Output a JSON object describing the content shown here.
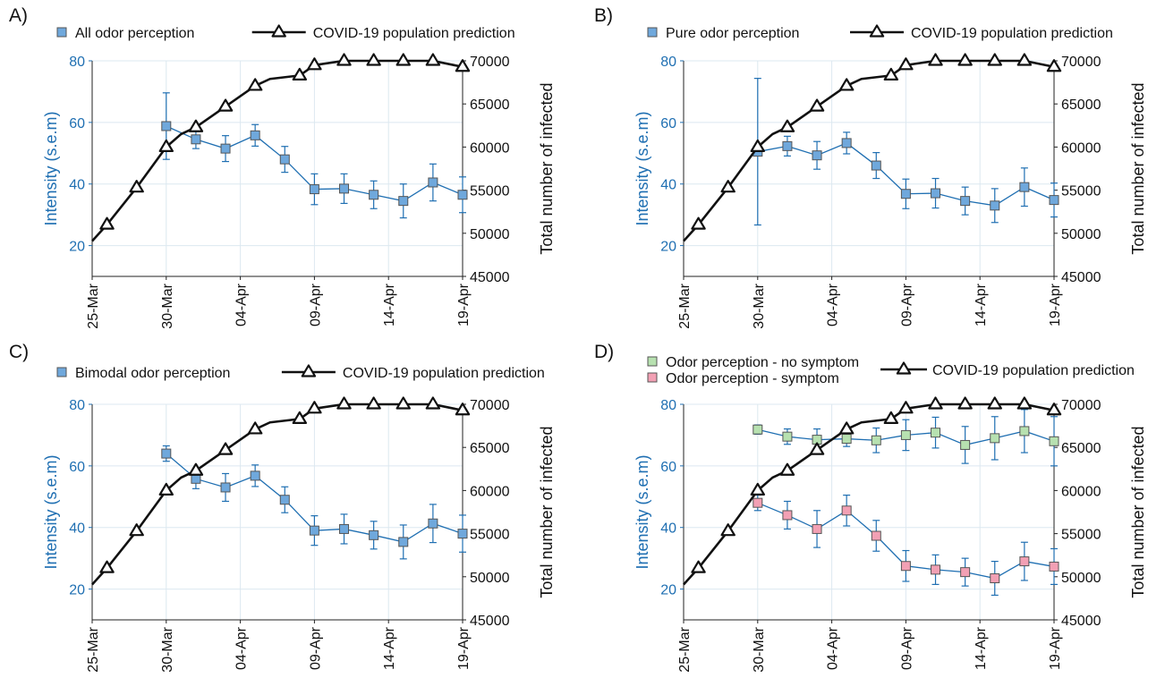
{
  "colors": {
    "blue": "#1f6fb2",
    "marker_blue": "#6fa8dc",
    "marker_green": "#b7e1b0",
    "marker_pink": "#f2a0b4",
    "marker_edge": "#555555",
    "covid_line": "#111111",
    "grid": "#dce8f0"
  },
  "dates": [
    "25-Mar",
    "30-Mar",
    "04-Apr",
    "09-Apr",
    "14-Apr",
    "19-Apr"
  ],
  "covid_dates": [
    "25-Mar",
    "26-Mar",
    "28-Mar",
    "30-Mar",
    "31-Mar",
    "01-Apr",
    "03-Apr",
    "05-Apr",
    "06-Apr",
    "08-Apr",
    "09-Apr",
    "11-Apr",
    "13-Apr",
    "15-Apr",
    "17-Apr",
    "19-Apr"
  ],
  "covid_values": [
    49100,
    51000,
    55300,
    60000,
    61500,
    62300,
    64700,
    67100,
    67900,
    68300,
    69500,
    70000,
    70000,
    70000,
    70000,
    69300
  ],
  "covid_markers": [
    false,
    true,
    true,
    true,
    false,
    true,
    true,
    true,
    false,
    true,
    true,
    true,
    true,
    true,
    true,
    true
  ],
  "chart_data": [
    {
      "panel_label": "A)",
      "type": "line",
      "xlim": [
        "25-Mar",
        "19-Apr"
      ],
      "x_ticks": [
        "25-Mar",
        "30-Mar",
        "04-Apr",
        "09-Apr",
        "14-Apr",
        "19-Apr"
      ],
      "ylabel_left": "Intensity (s.e.m)",
      "ylim_left": [
        10,
        80
      ],
      "yticks_left": [
        20,
        40,
        60,
        80
      ],
      "ylabel_right": "Total number of infected",
      "ylim_right": [
        45000,
        70000
      ],
      "yticks_right": [
        45000,
        50000,
        55000,
        60000,
        65000,
        70000
      ],
      "grid": true,
      "legend_position": "top",
      "series": [
        {
          "name": "All odor perception",
          "axis": "left",
          "marker_color_key": "marker_blue",
          "x": [
            "30-Mar",
            "01-Apr",
            "03-Apr",
            "05-Apr",
            "07-Apr",
            "09-Apr",
            "11-Apr",
            "13-Apr",
            "15-Apr",
            "17-Apr",
            "19-Apr"
          ],
          "y": [
            58.8,
            54.5,
            51.5,
            55.8,
            48.0,
            38.3,
            38.5,
            36.5,
            34.5,
            40.5,
            36.5
          ],
          "err": [
            10.8,
            3.0,
            4.2,
            3.5,
            4.2,
            5.0,
            4.8,
            4.5,
            5.5,
            6.0,
            5.8
          ]
        },
        {
          "name": "COVID-19 population prediction",
          "axis": "right"
        }
      ]
    },
    {
      "panel_label": "B)",
      "type": "line",
      "xlim": [
        "25-Mar",
        "19-Apr"
      ],
      "x_ticks": [
        "25-Mar",
        "30-Mar",
        "04-Apr",
        "09-Apr",
        "14-Apr",
        "19-Apr"
      ],
      "ylabel_left": "Intensity (s.e.m)",
      "ylim_left": [
        10,
        80
      ],
      "yticks_left": [
        20,
        40,
        60,
        80
      ],
      "ylabel_right": "Total number of infected",
      "ylim_right": [
        45000,
        70000
      ],
      "yticks_right": [
        45000,
        50000,
        55000,
        60000,
        65000,
        70000
      ],
      "grid": true,
      "legend_position": "top",
      "series": [
        {
          "name": "Pure odor perception",
          "axis": "left",
          "marker_color_key": "marker_blue",
          "x": [
            "30-Mar",
            "01-Apr",
            "03-Apr",
            "05-Apr",
            "07-Apr",
            "09-Apr",
            "11-Apr",
            "13-Apr",
            "15-Apr",
            "17-Apr",
            "19-Apr"
          ],
          "y": [
            50.5,
            52.3,
            49.3,
            53.3,
            46.0,
            36.8,
            37.0,
            34.5,
            33.0,
            39.0,
            34.8
          ],
          "err": [
            23.8,
            3.2,
            4.5,
            3.5,
            4.2,
            4.8,
            4.8,
            4.5,
            5.5,
            6.2,
            5.5
          ]
        },
        {
          "name": "COVID-19 population prediction",
          "axis": "right"
        }
      ]
    },
    {
      "panel_label": "C)",
      "type": "line",
      "xlim": [
        "25-Mar",
        "19-Apr"
      ],
      "x_ticks": [
        "25-Mar",
        "30-Mar",
        "04-Apr",
        "09-Apr",
        "14-Apr",
        "19-Apr"
      ],
      "ylabel_left": "Intensity (s.e.m)",
      "ylim_left": [
        10,
        80
      ],
      "yticks_left": [
        20,
        40,
        60,
        80
      ],
      "ylabel_right": "Total number of infected",
      "ylim_right": [
        45000,
        70000
      ],
      "yticks_right": [
        45000,
        50000,
        55000,
        60000,
        65000,
        70000
      ],
      "grid": true,
      "legend_position": "top",
      "series": [
        {
          "name": "Bimodal odor perception",
          "axis": "left",
          "marker_color_key": "marker_blue",
          "x": [
            "30-Mar",
            "01-Apr",
            "03-Apr",
            "05-Apr",
            "07-Apr",
            "09-Apr",
            "11-Apr",
            "13-Apr",
            "15-Apr",
            "17-Apr",
            "19-Apr"
          ],
          "y": [
            64.0,
            55.8,
            53.0,
            56.8,
            49.0,
            39.0,
            39.5,
            37.5,
            35.3,
            41.3,
            38.0
          ],
          "err": [
            2.5,
            3.2,
            4.5,
            3.5,
            4.2,
            4.8,
            4.8,
            4.5,
            5.5,
            6.2,
            6.0
          ]
        },
        {
          "name": "COVID-19 population prediction",
          "axis": "right"
        }
      ]
    },
    {
      "panel_label": "D)",
      "type": "line",
      "xlim": [
        "25-Mar",
        "19-Apr"
      ],
      "x_ticks": [
        "25-Mar",
        "30-Mar",
        "04-Apr",
        "09-Apr",
        "14-Apr",
        "19-Apr"
      ],
      "ylabel_left": "Intensity (s.e.m)",
      "ylim_left": [
        10,
        80
      ],
      "yticks_left": [
        20,
        40,
        60,
        80
      ],
      "ylabel_right": "Total number of infected",
      "ylim_right": [
        45000,
        70000
      ],
      "yticks_right": [
        45000,
        50000,
        55000,
        60000,
        65000,
        70000
      ],
      "grid": true,
      "legend_position": "top",
      "series": [
        {
          "name": "Odor perception - no symptom",
          "axis": "left",
          "marker_color_key": "marker_green",
          "x": [
            "30-Mar",
            "01-Apr",
            "03-Apr",
            "05-Apr",
            "07-Apr",
            "09-Apr",
            "11-Apr",
            "13-Apr",
            "15-Apr",
            "17-Apr",
            "19-Apr"
          ],
          "y": [
            71.8,
            69.5,
            68.5,
            68.8,
            68.3,
            70.0,
            70.8,
            66.8,
            69.0,
            71.3,
            68.0
          ],
          "err": [
            1.5,
            2.5,
            3.5,
            2.5,
            4.0,
            5.0,
            5.0,
            6.0,
            7.0,
            7.0,
            8.0
          ]
        },
        {
          "name": "Odor perception - symptom",
          "axis": "left",
          "marker_color_key": "marker_pink",
          "x": [
            "30-Mar",
            "01-Apr",
            "03-Apr",
            "05-Apr",
            "07-Apr",
            "09-Apr",
            "11-Apr",
            "13-Apr",
            "15-Apr",
            "17-Apr",
            "19-Apr"
          ],
          "y": [
            48.0,
            44.0,
            39.5,
            45.5,
            37.3,
            27.5,
            26.3,
            25.5,
            23.5,
            29.0,
            27.3
          ],
          "err": [
            2.5,
            4.5,
            6.0,
            5.0,
            5.0,
            5.0,
            4.8,
            4.5,
            5.5,
            6.2,
            5.8
          ]
        },
        {
          "name": "COVID-19 population prediction",
          "axis": "right"
        }
      ]
    }
  ]
}
